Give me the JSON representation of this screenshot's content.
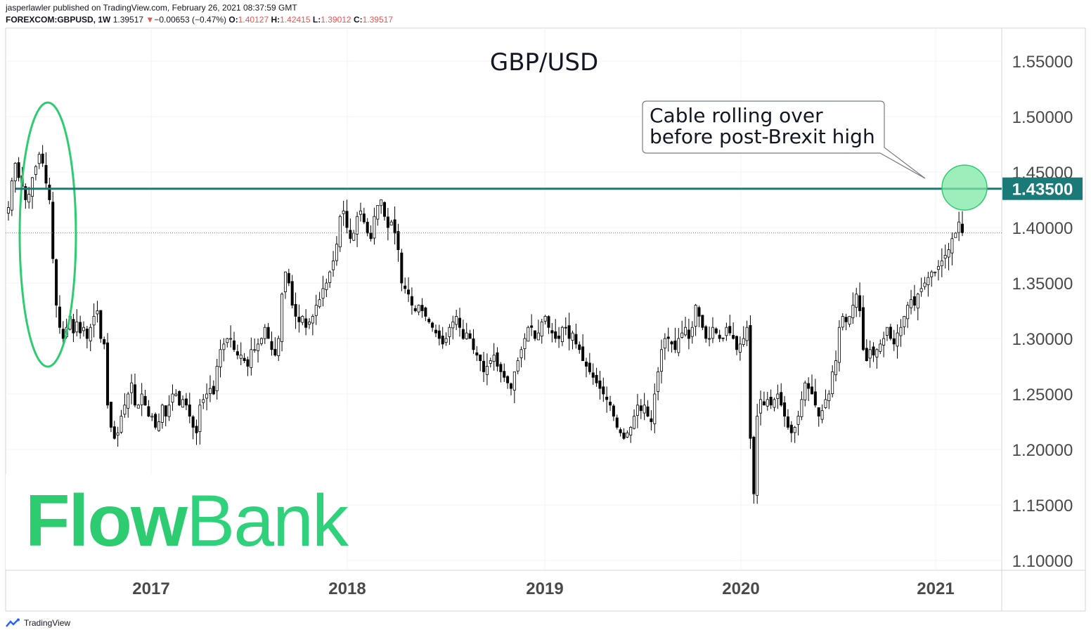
{
  "header": {
    "line1": "jasperlawler published on TradingView.com, February 26, 2021 08:37:59 GMT",
    "symbol": "FOREXCOM:GBPUSD, 1W",
    "last": "1.39517",
    "arrow": "▼",
    "change": "−0.00653 (−0.47%)",
    "o_label": "O:",
    "o_val": "1.40127",
    "h_label": "H:",
    "h_val": "1.42415",
    "l_label": "L:",
    "l_val": "1.39012",
    "c_label": "C:",
    "c_val": "1.39517"
  },
  "footer": {
    "brand": "TradingView",
    "icon": "tradingview-logo-icon"
  },
  "logo": {
    "flow": "Flow",
    "bank": "Bank"
  },
  "colors": {
    "up": "#ffffff",
    "down": "#000000",
    "wick": "#000000",
    "level_line": "#1a7a78",
    "ellipse": "#2ecc71",
    "circle_fill": "#7ee8a6",
    "grid": "#f0f3fa",
    "dotted": "#26a69a",
    "logo": "#2ecc71"
  },
  "chart_data": {
    "type": "candlestick",
    "title": "GBP/USD",
    "ylim": [
      1.1,
      1.55
    ],
    "yticks": [
      "1.10000",
      "1.15000",
      "1.20000",
      "1.25000",
      "1.30000",
      "1.35000",
      "1.40000",
      "1.45000",
      "1.50000",
      "1.55000"
    ],
    "xticks": [
      "2017",
      "2018",
      "2019",
      "2020",
      "2021"
    ],
    "grid": true,
    "highlight_level": {
      "value": 1.435,
      "label": "1.43500"
    },
    "current_price": 1.39517,
    "annotation": {
      "text_line1": "Cable rolling over",
      "text_line2": "before post-Brexit high"
    },
    "weekly_closes": [
      1.418,
      1.442,
      1.458,
      1.445,
      1.437,
      1.425,
      1.43,
      1.445,
      1.455,
      1.466,
      1.458,
      1.44,
      1.425,
      1.372,
      1.33,
      1.31,
      1.3,
      1.31,
      1.32,
      1.305,
      1.315,
      1.305,
      1.31,
      1.3,
      1.31,
      1.32,
      1.325,
      1.3,
      1.295,
      1.24,
      1.22,
      1.21,
      1.215,
      1.23,
      1.24,
      1.25,
      1.26,
      1.24,
      1.24,
      1.25,
      1.24,
      1.23,
      1.23,
      1.22,
      1.225,
      1.24,
      1.23,
      1.24,
      1.25,
      1.25,
      1.24,
      1.245,
      1.24,
      1.23,
      1.22,
      1.215,
      1.24,
      1.245,
      1.25,
      1.255,
      1.25,
      1.275,
      1.29,
      1.295,
      1.3,
      1.3,
      1.29,
      1.285,
      1.285,
      1.28,
      1.275,
      1.29,
      1.29,
      1.295,
      1.3,
      1.31,
      1.3,
      1.29,
      1.285,
      1.3,
      1.34,
      1.36,
      1.35,
      1.33,
      1.32,
      1.315,
      1.32,
      1.31,
      1.315,
      1.32,
      1.33,
      1.335,
      1.345,
      1.35,
      1.36,
      1.37,
      1.385,
      1.41,
      1.415,
      1.4,
      1.39,
      1.395,
      1.41,
      1.415,
      1.405,
      1.395,
      1.39,
      1.41,
      1.42,
      1.425,
      1.41,
      1.4,
      1.405,
      1.395,
      1.38,
      1.35,
      1.345,
      1.34,
      1.33,
      1.325,
      1.33,
      1.325,
      1.32,
      1.315,
      1.31,
      1.305,
      1.3,
      1.295,
      1.3,
      1.31,
      1.315,
      1.32,
      1.31,
      1.3,
      1.305,
      1.3,
      1.29,
      1.285,
      1.28,
      1.27,
      1.275,
      1.28,
      1.285,
      1.275,
      1.27,
      1.265,
      1.26,
      1.255,
      1.27,
      1.28,
      1.29,
      1.3,
      1.31,
      1.31,
      1.3,
      1.305,
      1.315,
      1.32,
      1.31,
      1.305,
      1.3,
      1.3,
      1.31,
      1.31,
      1.3,
      1.305,
      1.295,
      1.29,
      1.28,
      1.275,
      1.27,
      1.265,
      1.26,
      1.255,
      1.25,
      1.245,
      1.24,
      1.23,
      1.22,
      1.215,
      1.21,
      1.215,
      1.22,
      1.23,
      1.24,
      1.235,
      1.24,
      1.23,
      1.225,
      1.25,
      1.27,
      1.29,
      1.3,
      1.3,
      1.295,
      1.29,
      1.3,
      1.305,
      1.31,
      1.3,
      1.31,
      1.33,
      1.32,
      1.31,
      1.3,
      1.3,
      1.31,
      1.305,
      1.3,
      1.3,
      1.31,
      1.305,
      1.3,
      1.29,
      1.295,
      1.3,
      1.31,
      1.21,
      1.16,
      1.23,
      1.245,
      1.24,
      1.245,
      1.24,
      1.245,
      1.25,
      1.24,
      1.23,
      1.22,
      1.215,
      1.22,
      1.23,
      1.245,
      1.26,
      1.255,
      1.25,
      1.24,
      1.23,
      1.235,
      1.245,
      1.25,
      1.27,
      1.28,
      1.31,
      1.32,
      1.315,
      1.32,
      1.33,
      1.34,
      1.325,
      1.29,
      1.28,
      1.29,
      1.285,
      1.29,
      1.295,
      1.3,
      1.31,
      1.3,
      1.295,
      1.305,
      1.31,
      1.32,
      1.33,
      1.335,
      1.33,
      1.34,
      1.345,
      1.35,
      1.355,
      1.36,
      1.36,
      1.365,
      1.37,
      1.375,
      1.38,
      1.39,
      1.395,
      1.405,
      1.39517
    ]
  }
}
